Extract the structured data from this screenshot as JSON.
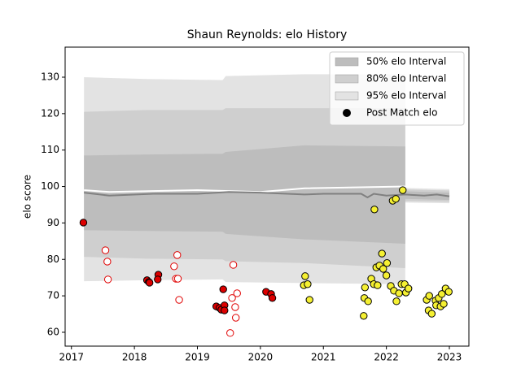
{
  "chart_data": {
    "type": "band-scatter",
    "title": "Shaun Reynolds: elo History",
    "y_label": "elo score",
    "xlim": [
      2016.9,
      2023.31
    ],
    "ylim": [
      56.2,
      138.25
    ],
    "xticks": [
      2017,
      2018,
      2019,
      2020,
      2021,
      2022,
      2023
    ],
    "yticks": [
      60,
      70,
      80,
      90,
      100,
      110,
      120,
      130
    ],
    "legend_loc": "upper right",
    "band_x": [
      2017.2,
      2018.2,
      2019.4,
      2019.45,
      2020.7,
      2022.3,
      2022.3,
      2023.0
    ],
    "bands": [
      {
        "name": "50% elo Interval",
        "color": "#bdbdbd",
        "upper": [
          108.5,
          108.8,
          109,
          109.5,
          111.3,
          111,
          98.7,
          98.3
        ],
        "lower": [
          88,
          87.8,
          87.6,
          87,
          85.5,
          84.3,
          96.6,
          96.3
        ]
      },
      {
        "name": "80% elo Interval",
        "color": "#cfcfcf",
        "upper": [
          120.5,
          121,
          121,
          121.5,
          121.5,
          121.5,
          99.2,
          98.9
        ],
        "lower": [
          80.7,
          80.2,
          80,
          79.5,
          79,
          77.6,
          96,
          95.8
        ]
      },
      {
        "name": "95% elo Interval",
        "color": "#e3e3e3",
        "upper": [
          130,
          129.5,
          129.2,
          130.3,
          130.8,
          130.8,
          99.6,
          99.3
        ],
        "lower": [
          74,
          74.3,
          74.5,
          73.8,
          73.5,
          73.2,
          95.6,
          95.4
        ]
      }
    ],
    "lines": [
      {
        "color": "#ffffff",
        "x": [
          2017.2,
          2017.6,
          2019.0,
          2020.0,
          2020.7,
          2022.3
        ],
        "y": [
          99,
          98.5,
          99,
          98.5,
          99.5,
          100
        ]
      },
      {
        "color": "#808080",
        "x": [
          2017.2,
          2017.6,
          2018.3,
          2019.0,
          2019.5,
          2020.0,
          2020.7,
          2021.0,
          2021.6,
          2021.7,
          2021.8,
          2022.0,
          2022.3,
          2022.6,
          2022.8,
          2023.0
        ],
        "y": [
          98.3,
          97.5,
          98,
          98,
          98.5,
          98.3,
          97.8,
          98,
          98,
          97,
          98,
          97.5,
          97.8,
          97.5,
          97.8,
          97.3
        ]
      }
    ],
    "points_legend": {
      "name": "Post Match elo",
      "color": "#000000"
    },
    "point_groups": [
      {
        "fill": "#dd0000",
        "edge": "#000000",
        "x": [
          2017.19,
          2018.2,
          2018.23,
          2018.24,
          2018.38,
          2018.37,
          2019.41,
          2019.3,
          2019.35,
          2019.38,
          2019.43,
          2019.43,
          2020.09,
          2020.17,
          2020.19
        ],
        "y": [
          90.1,
          74.3,
          73.8,
          73.6,
          75.8,
          74.5,
          71.8,
          67.1,
          66.7,
          66.2,
          67.4,
          66.0,
          71.1,
          70.5,
          69.4
        ]
      },
      {
        "fill": "#ffffff",
        "edge": "#e00000",
        "x": [
          2017.54,
          2017.57,
          2017.58,
          2018.68,
          2018.63,
          2018.66,
          2018.69,
          2018.71,
          2019.57,
          2019.55,
          2019.63,
          2019.6,
          2019.61,
          2019.52
        ],
        "y": [
          82.5,
          79.4,
          74.5,
          81.2,
          78.1,
          74.7,
          74.7,
          68.9,
          78.5,
          69.4,
          70.7,
          66.9,
          64.0,
          59.8
        ]
      },
      {
        "fill": "#f5f032",
        "edge": "#000000",
        "x": [
          2020.71,
          2020.69,
          2020.75,
          2020.78,
          2021.64,
          2021.65,
          2021.66,
          2021.71,
          2021.76,
          2021.8,
          2021.81,
          2021.84,
          2021.86,
          2021.89,
          2021.93,
          2021.95,
          2022.0,
          2022.01,
          2022.07,
          2022.12,
          2022.1,
          2022.15,
          2022.16,
          2022.2,
          2022.24,
          2022.26,
          2022.29,
          2022.31,
          2022.35,
          2022.64,
          2022.68,
          2022.67,
          2022.72,
          2022.78,
          2022.79,
          2022.83,
          2022.86,
          2022.88,
          2022.91,
          2022.94,
          2022.99
        ],
        "y": [
          75.4,
          72.9,
          73.2,
          68.9,
          64.5,
          69.4,
          72.3,
          68.5,
          74.7,
          73.2,
          93.7,
          77.8,
          72.9,
          78.3,
          81.6,
          77.4,
          75.6,
          79.0,
          72.7,
          71.4,
          96.1,
          96.6,
          68.5,
          70.7,
          73.2,
          99.0,
          73.2,
          70.9,
          72.0,
          68.9,
          70.0,
          66.0,
          65.1,
          68.7,
          67.4,
          69.4,
          67.1,
          70.5,
          67.8,
          72.0,
          71.1
        ]
      }
    ]
  }
}
